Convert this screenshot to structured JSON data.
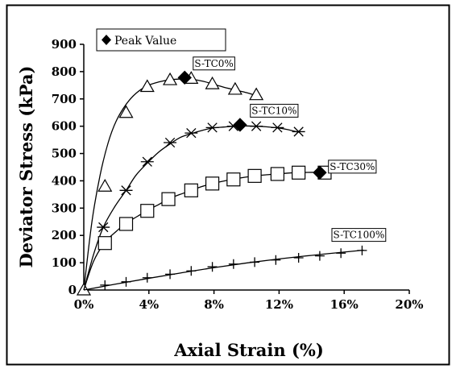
{
  "chart_data": {
    "type": "scatter",
    "title": "",
    "xlabel": "Axial Strain (%)",
    "ylabel": "Deviator Stress (kPa)",
    "xlim": [
      0,
      20
    ],
    "ylim": [
      0,
      900
    ],
    "x_ticks": [
      "0%",
      "4%",
      "8%",
      "12%",
      "16%",
      "20%"
    ],
    "y_ticks": [
      "0",
      "100",
      "200",
      "300",
      "400",
      "500",
      "600",
      "700",
      "800",
      "900"
    ],
    "grid": false,
    "legend": {
      "label": "Peak Value",
      "marker": "diamond",
      "placement": "top-left"
    },
    "series": [
      {
        "name": "S-TC0%",
        "marker": "triangle",
        "x": [
          0,
          1.3,
          2.6,
          3.9,
          5.3,
          6.6,
          7.9,
          9.3,
          10.6
        ],
        "y": [
          0,
          380,
          650,
          745,
          770,
          775,
          755,
          735,
          715
        ],
        "curve_x": [
          0,
          0.5,
          1.0,
          1.5,
          2.0,
          2.6,
          3.2,
          3.9,
          4.6,
          5.3,
          6.0,
          6.6,
          7.3,
          7.9,
          8.6,
          9.3,
          10.0,
          10.6
        ],
        "curve_y": [
          0,
          250,
          420,
          540,
          620,
          680,
          720,
          748,
          762,
          770,
          773,
          772,
          765,
          755,
          743,
          733,
          723,
          712
        ],
        "peak": {
          "x": 6.2,
          "y": 778
        }
      },
      {
        "name": "S-TC10%",
        "marker": "asterisk",
        "x": [
          1.2,
          2.6,
          3.9,
          5.3,
          6.6,
          7.9,
          9.2,
          10.6,
          11.9,
          13.2
        ],
        "y": [
          230,
          365,
          470,
          540,
          575,
          595,
          600,
          600,
          595,
          580
        ],
        "curve_x": [
          0,
          0.6,
          1.2,
          1.9,
          2.6,
          3.2,
          3.9,
          4.6,
          5.3,
          5.9,
          6.6,
          7.3,
          7.9,
          8.6,
          9.2,
          9.9,
          10.6,
          11.2,
          11.9,
          12.5,
          13.2
        ],
        "curve_y": [
          0,
          130,
          230,
          305,
          365,
          420,
          465,
          505,
          535,
          558,
          573,
          585,
          593,
          597,
          600,
          601,
          600,
          598,
          594,
          588,
          578
        ],
        "peak": {
          "x": 9.6,
          "y": 605
        }
      },
      {
        "name": "S-TC30%",
        "marker": "square",
        "x": [
          1.3,
          2.6,
          3.9,
          5.2,
          6.6,
          7.9,
          9.2,
          10.5,
          11.9,
          13.2,
          14.8
        ],
        "y": [
          172,
          242,
          290,
          333,
          365,
          390,
          405,
          418,
          425,
          430,
          430
        ],
        "curve_x": [
          0,
          0.6,
          1.3,
          2.0,
          2.6,
          3.3,
          3.9,
          4.6,
          5.2,
          5.9,
          6.6,
          7.2,
          7.9,
          8.6,
          9.2,
          9.9,
          10.5,
          11.2,
          11.9,
          12.5,
          13.2,
          14.0,
          14.8,
          15.5
        ],
        "curve_y": [
          0,
          105,
          175,
          215,
          245,
          270,
          292,
          313,
          333,
          350,
          364,
          378,
          390,
          399,
          406,
          413,
          418,
          422,
          425,
          428,
          430,
          431,
          431,
          430
        ],
        "peak": {
          "x": 14.5,
          "y": 430
        }
      },
      {
        "name": "S-TC100%",
        "marker": "plus",
        "x": [
          1.3,
          2.6,
          3.9,
          5.3,
          6.6,
          7.9,
          9.2,
          10.5,
          11.8,
          13.2,
          14.5,
          15.8,
          17.1
        ],
        "y": [
          18,
          30,
          45,
          58,
          70,
          85,
          95,
          102,
          110,
          118,
          125,
          135,
          145
        ],
        "curve_x": [
          0,
          2,
          4,
          6,
          8,
          10,
          12,
          14,
          16,
          17.2
        ],
        "curve_y": [
          0,
          22,
          43,
          63,
          82,
          99,
          114,
          127,
          139,
          146
        ],
        "peak": null
      }
    ]
  }
}
